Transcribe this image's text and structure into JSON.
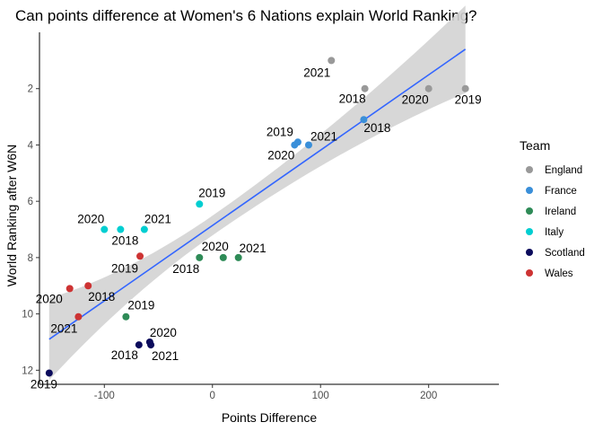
{
  "chart_data": {
    "type": "scatter",
    "title": "Can points difference at Women's 6 Nations explain World Ranking?",
    "xlabel": "Points Difference",
    "ylabel": "World Ranking after W6N",
    "xlim": [
      -160,
      265
    ],
    "ylim": [
      0,
      12.5
    ],
    "y_reversed": true,
    "x_ticks": [
      -100,
      0,
      100,
      200
    ],
    "y_ticks": [
      2,
      4,
      6,
      8,
      10,
      12
    ],
    "grid": false,
    "legend": {
      "title": "Team",
      "position": "right"
    },
    "series": [
      {
        "name": "England",
        "color": "#999999",
        "points": [
          {
            "x": 141,
            "y": 2,
            "label": "2018"
          },
          {
            "x": 234,
            "y": 2,
            "label": "2019"
          },
          {
            "x": 200,
            "y": 2,
            "label": "2020"
          },
          {
            "x": 110,
            "y": 1,
            "label": "2021"
          }
        ]
      },
      {
        "name": "France",
        "color": "#3a8fd9",
        "points": [
          {
            "x": 140,
            "y": 3.1,
            "label": "2018"
          },
          {
            "x": 79,
            "y": 3.9,
            "label": "2019"
          },
          {
            "x": 76,
            "y": 4,
            "label": "2020"
          },
          {
            "x": 89,
            "y": 4,
            "label": "2021"
          }
        ]
      },
      {
        "name": "Ireland",
        "color": "#2e8b57",
        "points": [
          {
            "x": -12,
            "y": 8,
            "label": "2018"
          },
          {
            "x": -80,
            "y": 10.1,
            "label": "2019"
          },
          {
            "x": 10,
            "y": 8,
            "label": "2020"
          },
          {
            "x": 24,
            "y": 8,
            "label": "2021"
          }
        ]
      },
      {
        "name": "Italy",
        "color": "#00ced1",
        "points": [
          {
            "x": -85,
            "y": 7,
            "label": "2018"
          },
          {
            "x": -12,
            "y": 6.1,
            "label": "2019"
          },
          {
            "x": -100,
            "y": 7,
            "label": "2020"
          },
          {
            "x": -63,
            "y": 7,
            "label": "2021"
          }
        ]
      },
      {
        "name": "Scotland",
        "color": "#0b0b5c",
        "points": [
          {
            "x": -68,
            "y": 11.1,
            "label": "2018"
          },
          {
            "x": -151,
            "y": 12.1,
            "label": "2019"
          },
          {
            "x": -58,
            "y": 11,
            "label": "2020"
          },
          {
            "x": -57,
            "y": 11.1,
            "label": "2021"
          }
        ]
      },
      {
        "name": "Wales",
        "color": "#cd3333",
        "points": [
          {
            "x": -115,
            "y": 9,
            "label": "2018"
          },
          {
            "x": -67,
            "y": 7.95,
            "label": "2019"
          },
          {
            "x": -132,
            "y": 9.1,
            "label": "2020"
          },
          {
            "x": -124,
            "y": 10.1,
            "label": "2021"
          }
        ]
      }
    ],
    "trend": {
      "type": "linear",
      "color": "#3366ff",
      "band_color": "#d3d3d3",
      "x_range": [
        -151,
        234
      ],
      "y_at_start": 10.9,
      "y_at_end": 0.6,
      "band_half_width_at_start": 1.45,
      "band_half_width_at_mean": 0.35,
      "band_half_width_at_end": 1.55,
      "x_mean": 0
    }
  }
}
